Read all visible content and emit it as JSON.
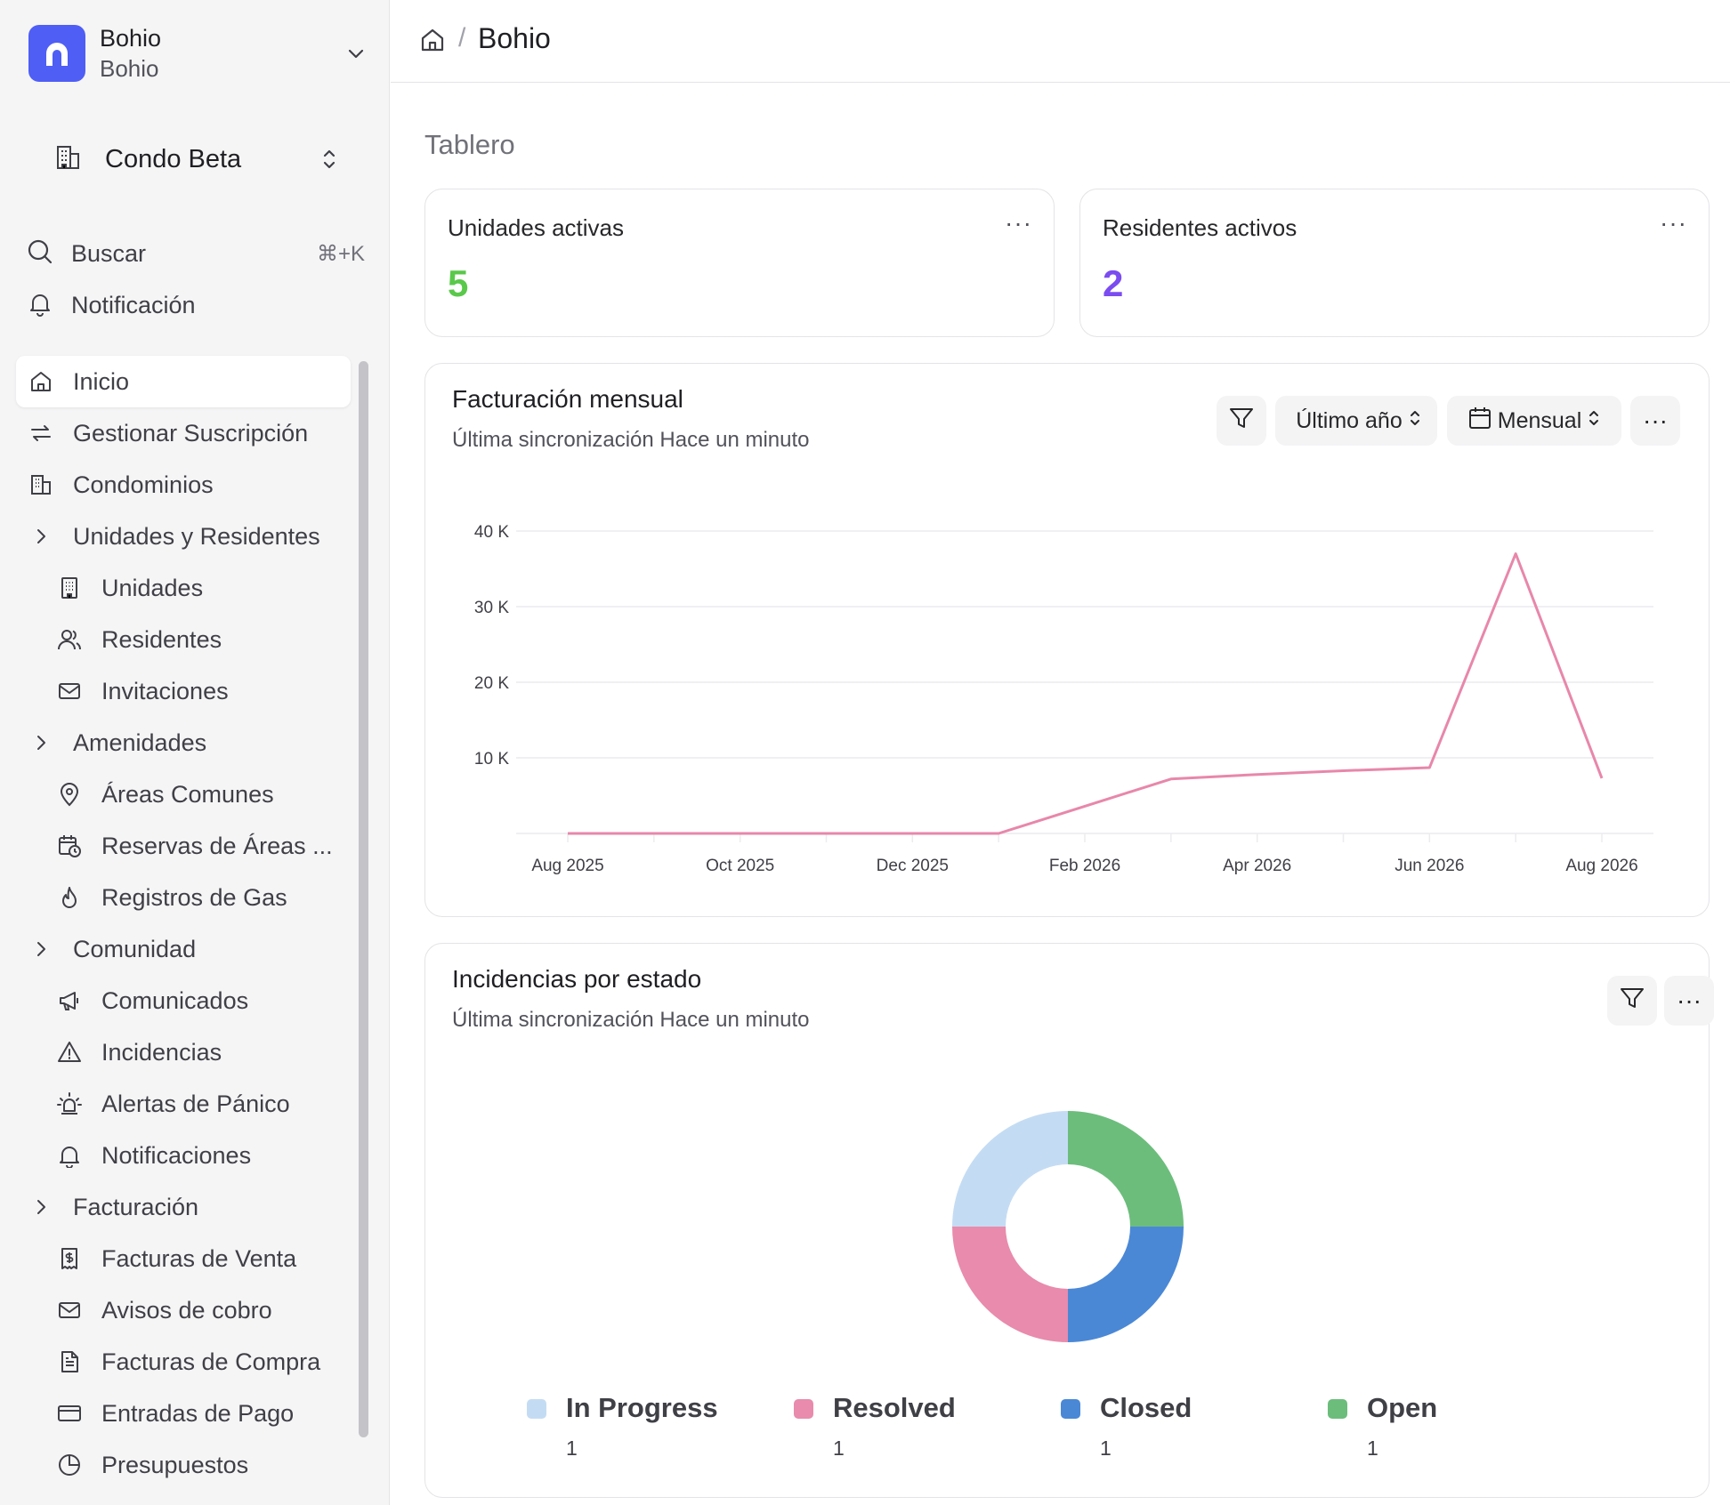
{
  "brand": {
    "name": "Bohio",
    "subtitle": "Bohio"
  },
  "condo_selector": {
    "label": "Condo Beta"
  },
  "quick": {
    "search_label": "Buscar",
    "search_shortcut": "⌘+K",
    "notification_label": "Notificación"
  },
  "nav": {
    "items": [
      {
        "label": "Inicio"
      },
      {
        "label": "Gestionar Suscripción"
      },
      {
        "label": "Condominios"
      },
      {
        "label": "Unidades y Residentes"
      },
      {
        "label": "Unidades"
      },
      {
        "label": "Residentes"
      },
      {
        "label": "Invitaciones"
      },
      {
        "label": "Amenidades"
      },
      {
        "label": "Áreas Comunes"
      },
      {
        "label": "Reservas de Áreas ..."
      },
      {
        "label": "Registros de Gas"
      },
      {
        "label": "Comunidad"
      },
      {
        "label": "Comunicados"
      },
      {
        "label": "Incidencias"
      },
      {
        "label": "Alertas de Pánico"
      },
      {
        "label": "Notificaciones"
      },
      {
        "label": "Facturación"
      },
      {
        "label": "Facturas de Venta"
      },
      {
        "label": "Avisos de cobro"
      },
      {
        "label": "Facturas de Compra"
      },
      {
        "label": "Entradas de Pago"
      },
      {
        "label": "Presupuestos"
      }
    ]
  },
  "breadcrumb": {
    "separator": "/",
    "current": "Bohio"
  },
  "page": {
    "title": "Tablero"
  },
  "stats": [
    {
      "title": "Unidades activas",
      "value": "5",
      "color": "#5ac84a",
      "more": "···"
    },
    {
      "title": "Residentes activos",
      "value": "2",
      "color": "#7b4cf0",
      "more": "···"
    }
  ],
  "billing": {
    "title": "Facturación mensual",
    "subtitle": "Última sincronización Hace un minuto",
    "period_label": "Último año",
    "interval_label": "Mensual",
    "more": "···"
  },
  "incidents": {
    "title": "Incidencias por estado",
    "subtitle": "Última sincronización Hace un minuto",
    "more": "···"
  },
  "chart_data": [
    {
      "type": "line",
      "title": "Facturación mensual",
      "x": [
        "Aug 2025",
        "Sep 2025",
        "Oct 2025",
        "Nov 2025",
        "Dec 2025",
        "Jan 2026",
        "Feb 2026",
        "Mar 2026",
        "Apr 2026",
        "May 2026",
        "Jun 2026",
        "Jul 2026",
        "Aug 2026"
      ],
      "x_tick_labels": [
        "Aug 2025",
        "Oct 2025",
        "Dec 2025",
        "Feb 2026",
        "Apr 2026",
        "Jun 2026",
        "Aug 2026"
      ],
      "series": [
        {
          "values": [
            0,
            0,
            0,
            0,
            0,
            0,
            3600,
            7200,
            7800,
            8300,
            8700,
            37000,
            7300
          ],
          "color": "#e887aa"
        }
      ],
      "y_ticks": [
        10000,
        20000,
        30000,
        40000
      ],
      "y_tick_labels": [
        "10 K",
        "20 K",
        "30 K",
        "40 K"
      ],
      "ylim": [
        0,
        40000
      ],
      "grid": true
    },
    {
      "type": "pie",
      "title": "Incidencias por estado",
      "donut": true,
      "slices": [
        {
          "label": "Open",
          "value": 1,
          "color": "#6cbd7c"
        },
        {
          "label": "Closed",
          "value": 1,
          "color": "#4a88d6"
        },
        {
          "label": "Resolved",
          "value": 1,
          "color": "#e88bac"
        },
        {
          "label": "In Progress",
          "value": 1,
          "color": "#c4dcf3"
        }
      ],
      "legend": [
        {
          "label": "In Progress",
          "value": "1",
          "color": "#c4dcf3"
        },
        {
          "label": "Resolved",
          "value": "1",
          "color": "#e88bac"
        },
        {
          "label": "Closed",
          "value": "1",
          "color": "#4a88d6"
        },
        {
          "label": "Open",
          "value": "1",
          "color": "#6cbd7c"
        }
      ],
      "legend_position": "bottom"
    }
  ]
}
